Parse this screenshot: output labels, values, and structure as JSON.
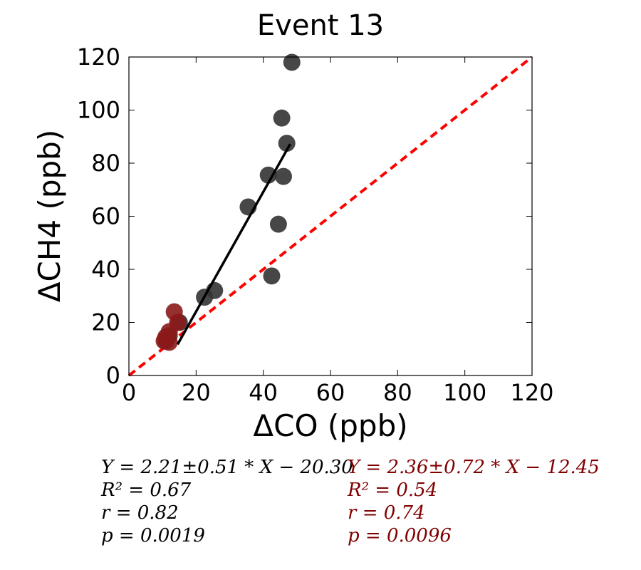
{
  "chart_data": {
    "type": "scatter",
    "title": "Event 13",
    "xlabel": "ΔCO (ppb)",
    "ylabel": "ΔCH4 (ppb)",
    "xlim": [
      0,
      120
    ],
    "ylim": [
      0,
      120
    ],
    "xticks": [
      "0",
      "20",
      "40",
      "60",
      "80",
      "100",
      "120"
    ],
    "yticks": [
      "0",
      "20",
      "40",
      "60",
      "80",
      "100",
      "120"
    ],
    "grid": false,
    "series": [
      {
        "color": "#333333",
        "points": [
          [
            48.5,
            118
          ],
          [
            45.5,
            97
          ],
          [
            47,
            87.5
          ],
          [
            41.5,
            75.5
          ],
          [
            46,
            75
          ],
          [
            35.5,
            63.5
          ],
          [
            44.5,
            57
          ],
          [
            42.5,
            37.5
          ],
          [
            25.5,
            32
          ],
          [
            22.5,
            29.5
          ],
          [
            15,
            20
          ],
          [
            12,
            15
          ],
          [
            11,
            13
          ]
        ]
      },
      {
        "color": "#8b1a1a",
        "points": [
          [
            13.5,
            24
          ],
          [
            14.5,
            20
          ],
          [
            12,
            16.5
          ],
          [
            11,
            14.5
          ],
          [
            10.5,
            13
          ],
          [
            12,
            12.5
          ]
        ]
      }
    ],
    "fit_line": {
      "x": [
        14.5,
        48
      ],
      "y": [
        11.7,
        87.2
      ],
      "color": "#000000"
    },
    "one_to_one_line": {
      "x": [
        0,
        120
      ],
      "y": [
        0,
        120
      ],
      "color": "#ff0000",
      "style": "dashed"
    }
  },
  "stats_left": {
    "eq": "Y = 2.21±0.51 * X − 20.30",
    "r2": "R² = 0.67",
    "r": "r = 0.82",
    "p": "p = 0.0019",
    "color": "#000000"
  },
  "stats_right": {
    "eq": "Y = 2.36±0.72 * X − 12.45",
    "r2": "R² = 0.54",
    "r": "r = 0.74",
    "p": "p = 0.0096",
    "color": "#800000"
  }
}
